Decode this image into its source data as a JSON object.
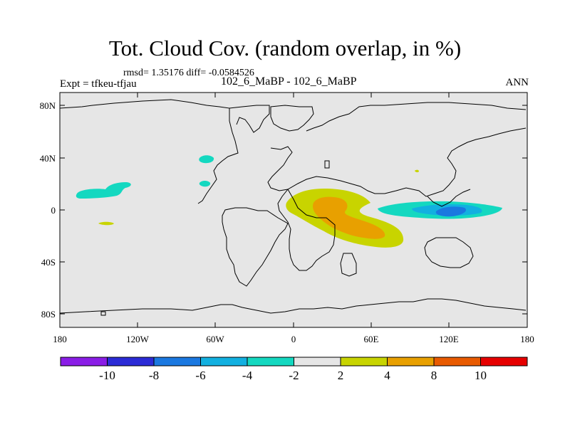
{
  "header": {
    "title": "Tot. Cloud Cov. (random overlap, in %)",
    "stats": "rmsd= 1.35176 diff= -0.0584526",
    "left_label": "Expt = tfkeu-tfjau",
    "center_label": "102_6_MaBP - 102_6_MaBP",
    "right_label": "ANN"
  },
  "map": {
    "background_color": "#e6e6e6",
    "lon_tick_labels": [
      "180",
      "120W",
      "60W",
      "0",
      "60E",
      "120E",
      "180"
    ],
    "lat_tick_labels": [
      "80N",
      "40N",
      "0",
      "40S",
      "80S"
    ]
  },
  "colorbar": {
    "labels": [
      "-10",
      "-8",
      "-6",
      "-4",
      "-2",
      "2",
      "4",
      "8",
      "10"
    ],
    "colors": [
      "#8a1de6",
      "#2b2bd6",
      "#1a78e0",
      "#12b0e0",
      "#14d8c0",
      "#e6e6e6",
      "#c8d400",
      "#e8a000",
      "#e85a00",
      "#e60000"
    ]
  }
}
